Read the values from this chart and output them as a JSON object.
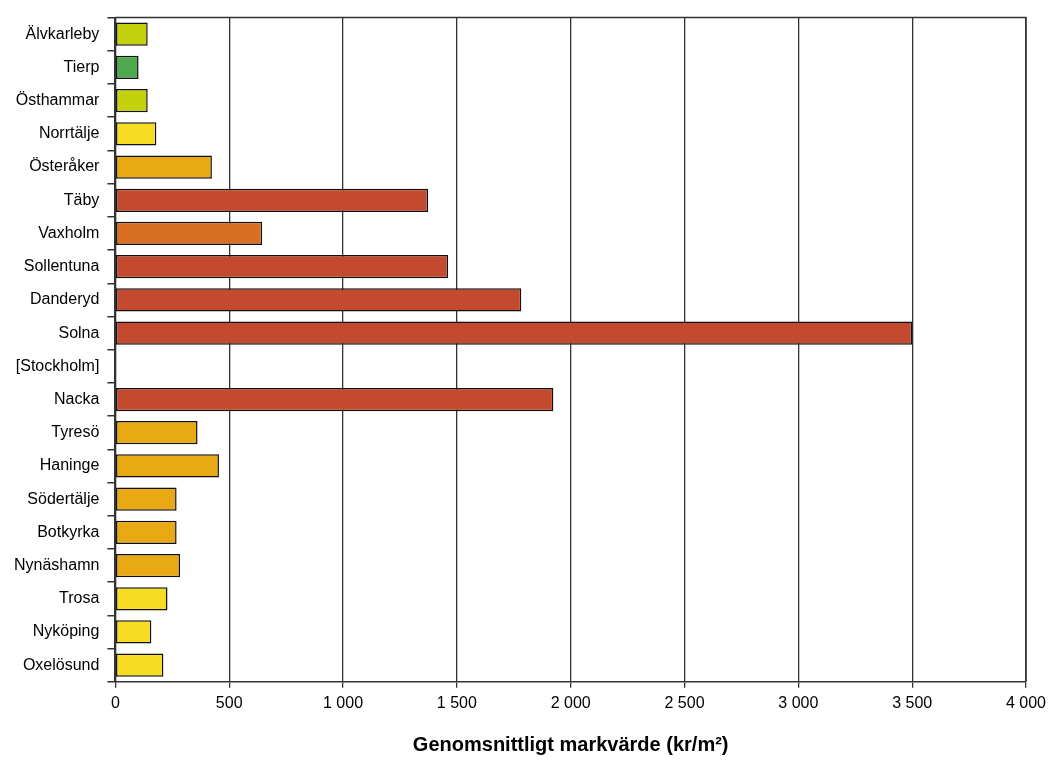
{
  "chart_data": {
    "type": "bar",
    "orientation": "horizontal",
    "xlabel": "Genomsnittligt markvärde (kr/m²)",
    "categories": [
      "Älvkarleby",
      "Tierp",
      "Östhammar",
      "Norrtälje",
      "Österåker",
      "Täby",
      "Vaxholm",
      "Sollentuna",
      "Danderyd",
      "Solna",
      "[Stockholm]",
      "Nacka",
      "Tyresö",
      "Haninge",
      "Södertälje",
      "Botkyrka",
      "Nynäshamn",
      "Trosa",
      "Nyköping",
      "Oxelösund"
    ],
    "values": [
      142,
      102,
      142,
      180,
      424,
      1374,
      645,
      1462,
      1783,
      3500,
      null,
      1924,
      361,
      455,
      269,
      269,
      284,
      229,
      158,
      211
    ],
    "colors": [
      "#c5d10f",
      "#4ea84e",
      "#c5d10f",
      "#f7dc22",
      "#e9a913",
      "#c34a2e",
      "#d96f22",
      "#c34a2e",
      "#c34a2e",
      "#c34a2e",
      "#c34a2e",
      "#c34a2e",
      "#e9a913",
      "#e9a913",
      "#e9a913",
      "#e9a913",
      "#e9a913",
      "#f7dc22",
      "#f7dc22",
      "#f7dc22"
    ],
    "xlim": [
      0,
      4000
    ],
    "xticks": [
      0,
      500,
      {
        "value": 1000,
        "label": "1 000"
      },
      {
        "value": 1500,
        "label": "1 500"
      },
      {
        "value": 2000,
        "label": "2 000"
      },
      {
        "value": 2500,
        "label": "2 500"
      },
      {
        "value": 3000,
        "label": "3 000"
      },
      {
        "value": 3500,
        "label": "3 500"
      },
      {
        "value": 4000,
        "label": "4 000"
      }
    ],
    "grid": "x",
    "legend": false
  }
}
